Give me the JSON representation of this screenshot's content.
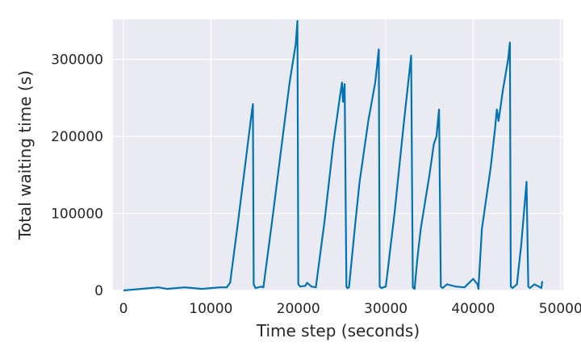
{
  "chart_data": {
    "type": "line",
    "title": "",
    "xlabel": "Time step (seconds)",
    "ylabel": "Total waiting time (s)",
    "xlim": [
      -1200,
      50300
    ],
    "ylim": [
      0,
      352000
    ],
    "xticks": [
      0,
      10000,
      20000,
      30000,
      40000,
      50000
    ],
    "xtick_labels": [
      "0",
      "10000",
      "20000",
      "30000",
      "40000",
      "50000"
    ],
    "yticks": [
      0,
      100000,
      200000,
      300000
    ],
    "ytick_labels": [
      "0",
      "100000",
      "200000",
      "300000"
    ],
    "grid": true,
    "legend": "none",
    "colors": {
      "plot_bg": "#eaeaf2",
      "grid": "#ffffff",
      "line": "#0173b2",
      "text": "#262626"
    },
    "series": [
      {
        "x": [
          0,
          2000,
          3000,
          4000,
          5000,
          6000,
          7000,
          8000,
          9000,
          10000,
          11000,
          11800,
          12200,
          13000,
          14000,
          14600,
          14800,
          14900,
          15100,
          15800,
          16000,
          17000,
          18000,
          19000,
          19700,
          19900,
          20000,
          20200,
          20800,
          21000,
          21500,
          22000,
          23000,
          24000,
          24800,
          25000,
          25100,
          25300,
          25500,
          25600,
          25800,
          26500,
          27000,
          28000,
          28800,
          29200,
          29300,
          29500,
          30000,
          31000,
          32000,
          32900,
          33100,
          33300,
          33600,
          34000,
          35000,
          35500,
          35800,
          36100,
          36300,
          36500,
          37000,
          38000,
          39000,
          40000,
          40500,
          40600,
          41000,
          42000,
          42500,
          42700,
          42900,
          43400,
          44000,
          44200,
          44300,
          44500,
          45000,
          45500,
          46100,
          46300,
          46500,
          47000,
          47500,
          47800,
          47900
        ],
        "y": [
          0,
          2000,
          3000,
          4000,
          2000,
          3000,
          4000,
          3000,
          2000,
          3000,
          4000,
          4000,
          10000,
          80000,
          170000,
          225000,
          242000,
          8000,
          3000,
          5000,
          4000,
          90000,
          180000,
          270000,
          320000,
          350000,
          8000,
          5000,
          6000,
          10000,
          5000,
          4000,
          90000,
          190000,
          255000,
          270000,
          245000,
          268000,
          5000,
          3000,
          4000,
          85000,
          140000,
          220000,
          270000,
          313000,
          5000,
          3000,
          5000,
          100000,
          210000,
          305000,
          4000,
          2000,
          40000,
          80000,
          150000,
          190000,
          200000,
          235000,
          5000,
          3000,
          8000,
          5000,
          4000,
          15000,
          8000,
          2000,
          80000,
          160000,
          210000,
          235000,
          220000,
          260000,
          300000,
          322000,
          5000,
          3000,
          8000,
          60000,
          141000,
          5000,
          3000,
          8000,
          5000,
          3000,
          12000
        ]
      }
    ]
  }
}
